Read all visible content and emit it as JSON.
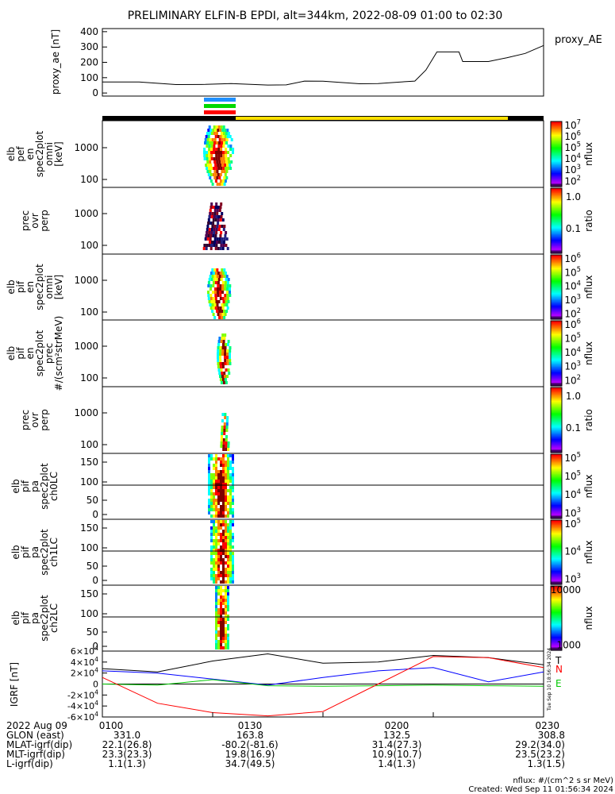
{
  "title": "PRELIMINARY ELFIN-B EPDI, alt=344km, 2022-08-09 01:00 to 02:30",
  "colors": {
    "black": "#000000",
    "blue": "#0000ff",
    "green": "#00c800",
    "red": "#ff0000",
    "yellow": "#ffe000",
    "magenta": "#ff00ff"
  },
  "chart_data": [
    {
      "type": "line",
      "ylabel": "proxy_ae [nT]",
      "legend": "proxy_AE",
      "yticks": [
        "400",
        "300",
        "200",
        "100",
        "0"
      ],
      "ylim": [
        -20,
        420
      ],
      "x_minutes_from_0100": [
        0,
        10,
        20,
        28,
        35,
        45,
        50,
        55,
        60,
        70,
        75,
        80,
        85,
        88,
        91,
        95,
        97,
        98,
        105,
        110,
        115,
        120
      ],
      "values": [
        72,
        72,
        55,
        56,
        62,
        52,
        53,
        78,
        77,
        60,
        62,
        70,
        78,
        150,
        268,
        268,
        268,
        205,
        205,
        230,
        258,
        310
      ]
    },
    {
      "type": "heatmap",
      "ylabel": "elb pef en spec2plot omni [keV]",
      "yticks": [
        "1000",
        "100"
      ],
      "colorbar_label": "nflux",
      "colorbar_ticks": [
        "10^7",
        "10^6",
        "10^5",
        "10^4",
        "10^3",
        "10^2"
      ]
    },
    {
      "type": "heatmap",
      "ylabel": "prec ovr perp",
      "yticks": [
        "1000",
        "100"
      ],
      "colorbar_label": "ratio",
      "colorbar_ticks": [
        "1.0",
        "0.1"
      ]
    },
    {
      "type": "heatmap",
      "ylabel": "elb pif en spec2plot omni [keV]",
      "yticks": [
        "1000",
        "100"
      ],
      "colorbar_label": "nflux",
      "colorbar_ticks": [
        "10^6",
        "10^5",
        "10^4",
        "10^3",
        "10^2"
      ]
    },
    {
      "type": "heatmap",
      "ylabel": "elb pif en spec2plot prec #/(scm²strMeV)",
      "yticks": [
        "1000",
        "100"
      ],
      "colorbar_label": "nflux",
      "colorbar_ticks": [
        "10^6",
        "10^5",
        "10^4",
        "10^3",
        "10^2"
      ]
    },
    {
      "type": "heatmap",
      "ylabel": "prec ovr perp",
      "yticks": [
        "1000",
        "100"
      ],
      "colorbar_label": "ratio",
      "colorbar_ticks": [
        "1.0",
        "0.1"
      ]
    },
    {
      "type": "heatmap",
      "ylabel": "elb pif pa spec2plot ch0LC",
      "yticks": [
        "150",
        "100",
        "50",
        "0"
      ],
      "colorbar_label": "nflux",
      "colorbar_ticks": [
        "10^5",
        "10^5",
        "10^4",
        "10^3"
      ]
    },
    {
      "type": "heatmap",
      "ylabel": "elb pif pa spec2plot ch1LC",
      "yticks": [
        "150",
        "100",
        "50",
        "0"
      ],
      "colorbar_label": "nflux",
      "colorbar_ticks": [
        "10^5",
        "10^4",
        "10^3"
      ]
    },
    {
      "type": "heatmap",
      "ylabel": "elb pif pa spec2plot ch2LC",
      "yticks": [
        "150",
        "100",
        "50",
        "0"
      ],
      "colorbar_label": "nflux",
      "colorbar_ticks": [
        "10000",
        "1000"
      ]
    },
    {
      "type": "line",
      "ylabel": "IGRF [nT]",
      "yticks": [
        "6×10^4",
        "4×10^4",
        "2×10^4",
        "0",
        "-2×10^4",
        "-4×10^4",
        "-6×10^4"
      ],
      "ylim": [
        -60000,
        60000
      ],
      "legend": [
        "T",
        "N",
        "E"
      ],
      "x_minutes_from_0100": [
        0,
        15,
        30,
        45,
        60,
        75,
        90,
        105,
        120
      ],
      "series": [
        {
          "name": "T",
          "values": [
            28000,
            22000,
            42000,
            55000,
            38000,
            40000,
            52000,
            48000,
            35000
          ]
        },
        {
          "name": "N",
          "values": [
            24000,
            20000,
            9000,
            -2000,
            12000,
            24000,
            30000,
            4000,
            22000
          ]
        },
        {
          "name": "E",
          "values": [
            0,
            -2000,
            8000,
            -3000,
            -4000,
            -3000,
            -2000,
            -3000,
            -4000
          ]
        },
        {
          "name": "",
          "values": [
            12000,
            -35000,
            -52000,
            -58000,
            -50000,
            0,
            50000,
            48000,
            30000
          ]
        }
      ]
    }
  ],
  "time_axis": {
    "row_labels": [
      "2022 Aug 09",
      "GLON (east)",
      "MLAT-igrf(dip)",
      "MLT-igrf(dip)",
      "L-igrf(dip)"
    ],
    "columns": [
      {
        "tick": "0100",
        "values": [
          "331.0",
          "22.1(26.8)",
          "23.3(23.3)",
          "1.1(1.3)"
        ]
      },
      {
        "tick": "0130",
        "values": [
          "163.8",
          "-80.2(-81.6)",
          "19.8(16.9)",
          "34.7(49.5)"
        ]
      },
      {
        "tick": "0200",
        "values": [
          "132.5",
          "31.4(27.3)",
          "10.9(10.7)",
          "1.4(1.3)"
        ]
      },
      {
        "tick": "0230",
        "values": [
          "308.8",
          "29.2(34.0)",
          "23.5(23.2)",
          "1.3(1.5)"
        ]
      }
    ]
  },
  "footer": {
    "units": "nflux: #/(cm^2 s sr MeV)",
    "created": "Created: Wed Sep 11 01:56:34 2024"
  },
  "side_stamp": "Tue Sep 10 18:56:34 2024"
}
